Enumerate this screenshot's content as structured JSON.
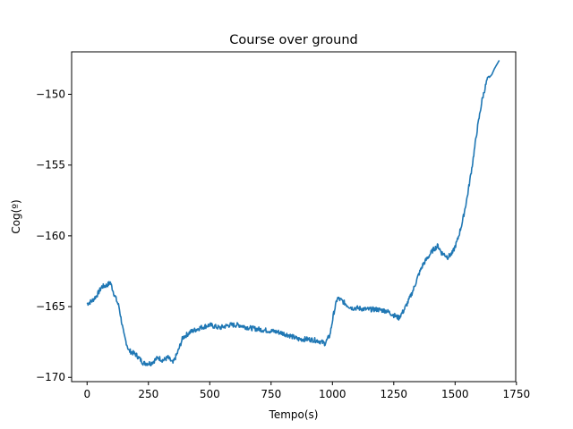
{
  "chart_data": {
    "type": "line",
    "title": "Course over ground",
    "xlabel": "Tempo(s)",
    "ylabel": "Cog(º)",
    "xlim": [
      -63,
      1747
    ],
    "ylim": [
      -170.3,
      -147.0
    ],
    "xticks": [
      0,
      250,
      500,
      750,
      1000,
      1250,
      1500,
      1750
    ],
    "yticks": [
      -170,
      -165,
      -160,
      -155,
      -150
    ],
    "grid": false,
    "color": "#1f77b4",
    "series": [
      {
        "x": [
          0,
          20,
          40,
          60,
          80,
          95,
          110,
          130,
          150,
          170,
          200,
          230,
          260,
          290,
          310,
          330,
          350,
          370,
          390,
          420,
          460,
          500,
          540,
          580,
          620,
          660,
          700,
          740,
          780,
          820,
          860,
          900,
          940,
          970,
          990,
          1005,
          1020,
          1040,
          1060,
          1080,
          1100,
          1140,
          1180,
          1220,
          1250,
          1270,
          1290,
          1310,
          1330,
          1350,
          1370,
          1390,
          1410,
          1430,
          1445,
          1455,
          1470,
          1490,
          1510,
          1530,
          1550,
          1570,
          1590,
          1610,
          1630,
          1650,
          1660,
          1670,
          1680
        ],
        "y": [
          -164.8,
          -164.6,
          -164.2,
          -163.6,
          -163.5,
          -163.3,
          -164.1,
          -165.0,
          -167.0,
          -168.1,
          -168.4,
          -169.0,
          -169.0,
          -168.6,
          -168.8,
          -168.6,
          -169.0,
          -168.2,
          -167.2,
          -166.8,
          -166.5,
          -166.3,
          -166.5,
          -166.3,
          -166.3,
          -166.5,
          -166.6,
          -166.7,
          -166.8,
          -167.0,
          -167.3,
          -167.3,
          -167.4,
          -167.6,
          -167.0,
          -165.5,
          -164.4,
          -164.6,
          -164.9,
          -165.1,
          -165.1,
          -165.2,
          -165.2,
          -165.3,
          -165.6,
          -165.8,
          -165.3,
          -164.6,
          -163.8,
          -162.8,
          -162.0,
          -161.5,
          -161.0,
          -160.7,
          -161.2,
          -161.3,
          -161.5,
          -161.2,
          -160.3,
          -159.0,
          -157.2,
          -155.0,
          -152.5,
          -150.4,
          -149.0,
          -148.6,
          -148.2,
          -147.9,
          -147.6
        ]
      }
    ]
  }
}
